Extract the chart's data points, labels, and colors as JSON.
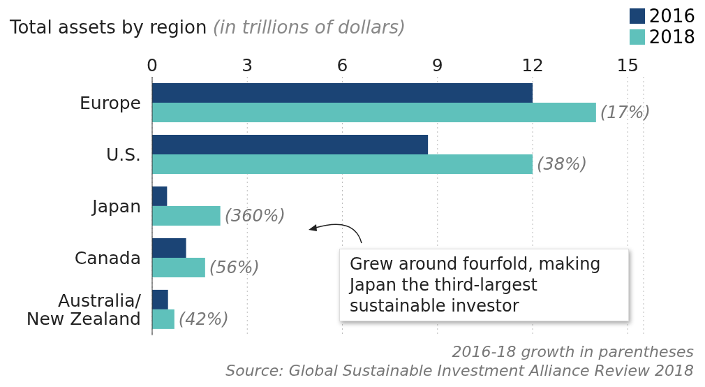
{
  "chart_data": {
    "type": "bar",
    "orientation": "horizontal",
    "title": "Total assets by region",
    "subtitle": "(in trillions of dollars)",
    "categories": [
      "Europe",
      "U.S.",
      "Japan",
      "Canada",
      "Australia/ New Zealand"
    ],
    "series": [
      {
        "name": "2016",
        "color": "#1b4475",
        "values": [
          12.0,
          8.7,
          0.47,
          1.07,
          0.5
        ]
      },
      {
        "name": "2018",
        "color": "#5fc1bb",
        "values": [
          14.0,
          12.0,
          2.15,
          1.67,
          0.7
        ]
      }
    ],
    "xlim": [
      0,
      15.5
    ],
    "xticks": [
      0,
      3,
      6,
      9,
      12,
      15
    ],
    "grid": "x",
    "legend": "top right",
    "annotations": [
      {
        "text": "(17%)",
        "x": 14.0,
        "y": "Europe"
      },
      {
        "text": "(38%)",
        "x": 12.0,
        "y": "U.S."
      },
      {
        "text": "(360%)",
        "x": 2.15,
        "y": "Japan"
      },
      {
        "text": "(56%)",
        "x": 1.67,
        "y": "Canada"
      },
      {
        "text": "(42%)",
        "x": 0.7,
        "y": "Australia/ New Zealand"
      },
      "Grew around fourfold, making Japan the third-largest sustainable investor",
      "2016-18 growth in parentheses",
      "Source: Global Sustainable Investment Alliance Review 2018"
    ]
  }
}
